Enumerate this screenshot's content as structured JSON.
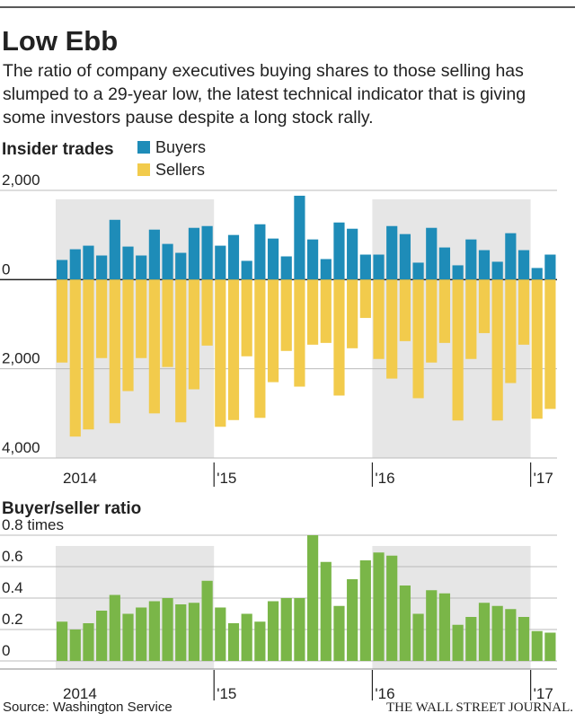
{
  "header": {
    "title": "Low Ebb",
    "subtitle": "The ratio of company executives buying shares to those selling has slumped to a 29-year low, the latest technical indicator that is giving some investors pause despite a long stock rally."
  },
  "chart_data": [
    {
      "type": "bar",
      "title": "Insider trades",
      "categories": [
        "2014",
        null,
        null,
        null,
        null,
        null,
        null,
        null,
        null,
        null,
        null,
        null,
        "'15",
        null,
        null,
        null,
        null,
        null,
        null,
        null,
        null,
        null,
        null,
        null,
        "'16",
        null,
        null,
        null,
        null,
        null,
        null,
        null,
        null,
        null,
        null,
        null,
        "'17",
        null
      ],
      "series": [
        {
          "name": "Buyers",
          "color": "#1e8cb8",
          "values": [
            440,
            680,
            760,
            540,
            1340,
            740,
            540,
            1120,
            800,
            600,
            1160,
            1200,
            760,
            1000,
            420,
            1240,
            920,
            520,
            1880,
            900,
            460,
            1280,
            1140,
            560,
            560,
            1200,
            1020,
            380,
            1160,
            720,
            320,
            900,
            660,
            400,
            1040,
            660,
            260,
            560
          ]
        },
        {
          "name": "Sellers",
          "color": "#f2cb4c",
          "values": [
            -1860,
            -3520,
            -3360,
            -1760,
            -3220,
            -2500,
            -1760,
            -3000,
            -1960,
            -3200,
            -2460,
            -1480,
            -3300,
            -3150,
            -1720,
            -3100,
            -2300,
            -1600,
            -2400,
            -1460,
            -1420,
            -2600,
            -1540,
            -860,
            -1780,
            -2220,
            -1380,
            -2660,
            -1860,
            -1420,
            -3160,
            -1780,
            -1200,
            -3160,
            -2320,
            -1460,
            -3120,
            -2900
          ]
        }
      ],
      "ylim": [
        -4000,
        2000
      ],
      "yticks": [
        {
          "value": 2000,
          "label": "2,000"
        },
        0,
        {
          "value": -2000,
          "label": "2,000"
        },
        {
          "value": -4000,
          "label": "4,000"
        }
      ],
      "grid": true
    },
    {
      "type": "bar",
      "title": "Buyer/seller ratio",
      "categories": [
        "2014",
        null,
        null,
        null,
        null,
        null,
        null,
        null,
        null,
        null,
        null,
        null,
        "'15",
        null,
        null,
        null,
        null,
        null,
        null,
        null,
        null,
        null,
        null,
        null,
        "'16",
        null,
        null,
        null,
        null,
        null,
        null,
        null,
        null,
        null,
        null,
        null,
        "'17",
        null
      ],
      "values": [
        0.25,
        0.2,
        0.24,
        0.32,
        0.42,
        0.3,
        0.34,
        0.38,
        0.4,
        0.36,
        0.37,
        0.51,
        0.34,
        0.24,
        0.3,
        0.25,
        0.38,
        0.4,
        0.4,
        0.8,
        0.63,
        0.35,
        0.52,
        0.64,
        0.69,
        0.67,
        0.48,
        0.3,
        0.45,
        0.43,
        0.23,
        0.28,
        0.37,
        0.35,
        0.33,
        0.28,
        0.19,
        0.18
      ],
      "color": "#7ab648",
      "ylim": [
        0,
        0.8
      ],
      "yticks": [
        {
          "value": 0.8,
          "label": "0.8 times"
        },
        0.6,
        0.4,
        0.2,
        0
      ],
      "grid": true
    }
  ],
  "source": "Source: Washington Service",
  "publisher": "THE WALL STREET JOURNAL."
}
